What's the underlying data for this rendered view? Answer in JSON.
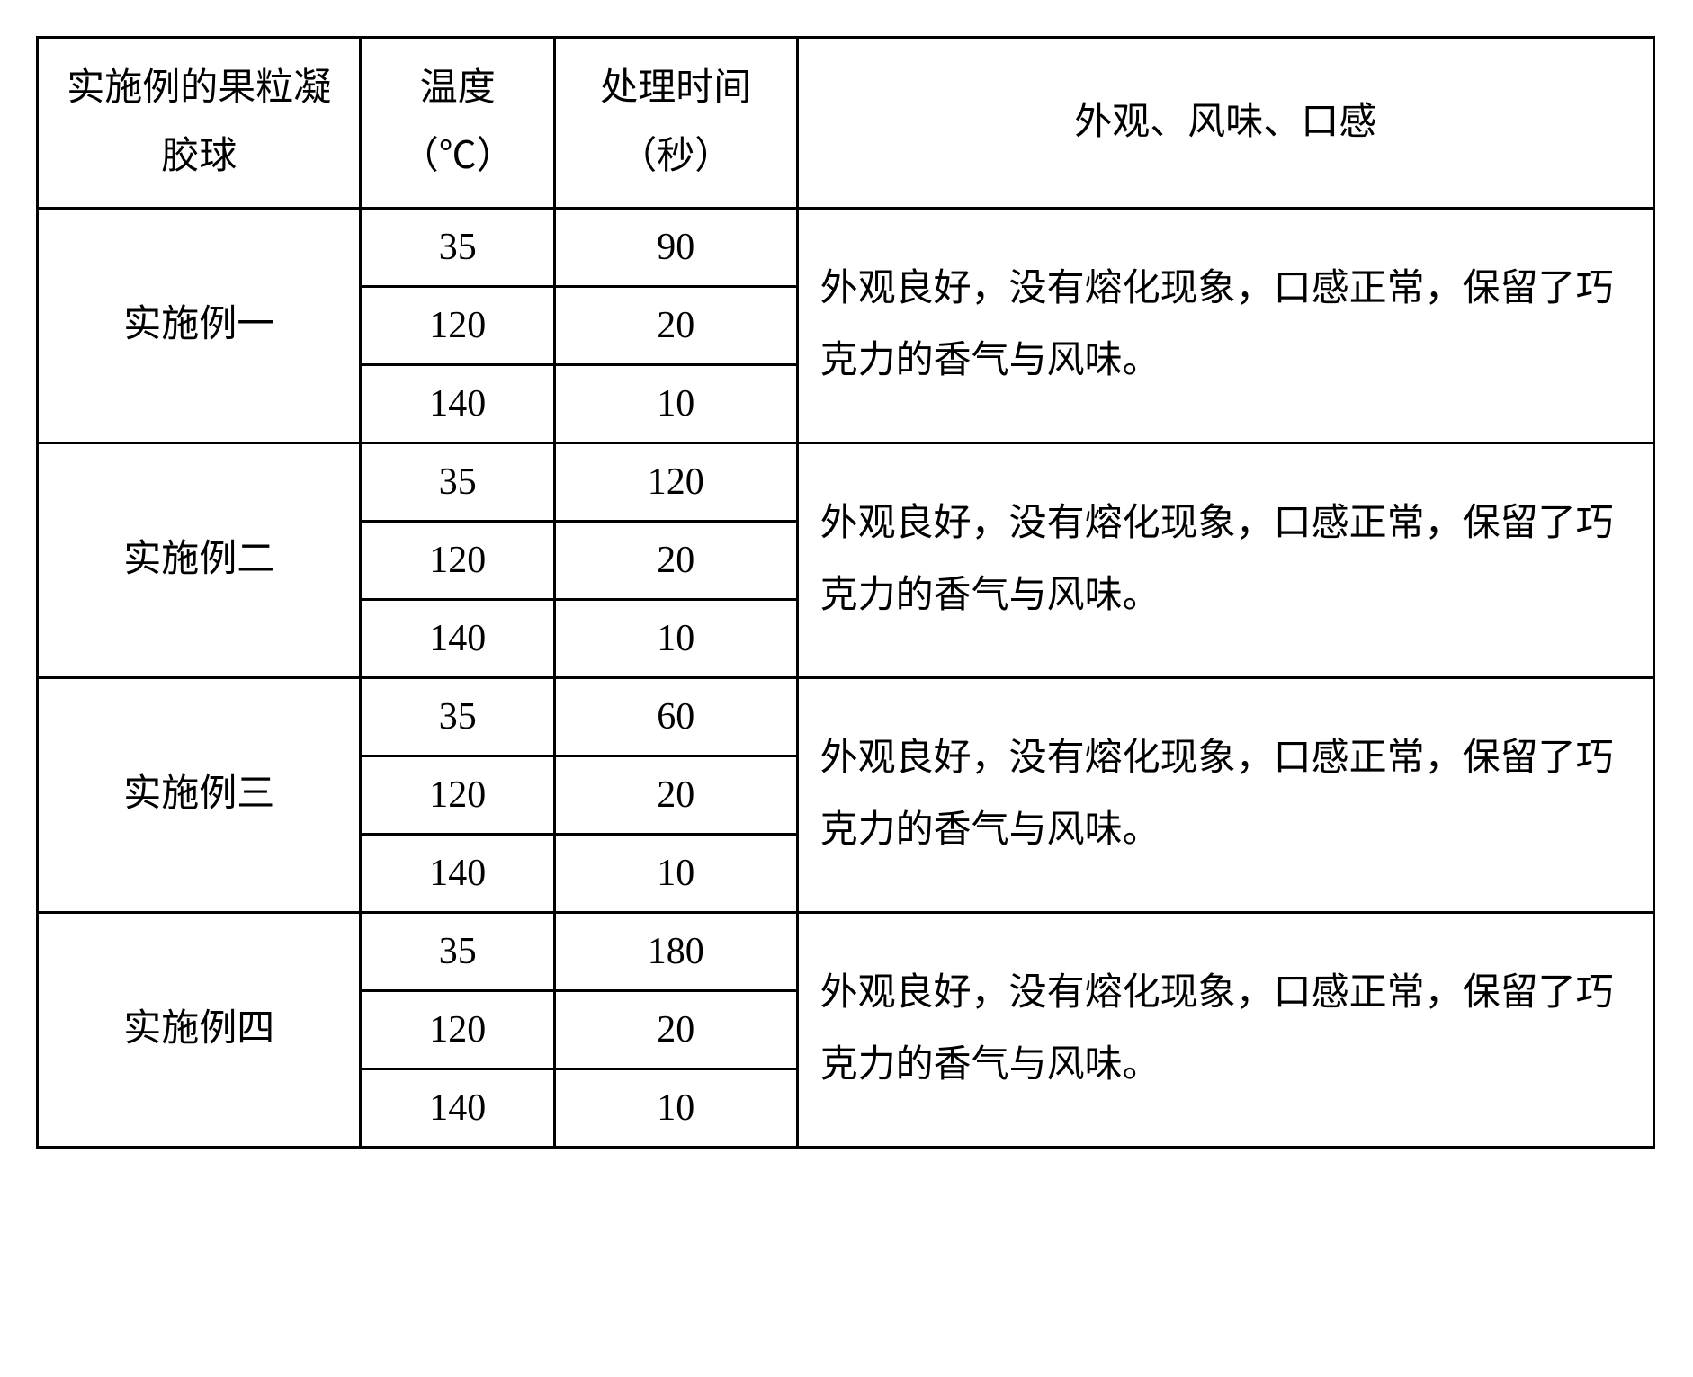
{
  "table": {
    "type": "table",
    "border_color": "#000000",
    "border_width": 3,
    "background_color": "#ffffff",
    "text_color": "#000000",
    "font_family": "SimSun",
    "fontsize": 42,
    "columns": [
      {
        "key": "example",
        "header": "实施例的果粒凝胶球",
        "width_pct": 20,
        "align": "center"
      },
      {
        "key": "temp",
        "header": "温度（℃）",
        "width_pct": 12,
        "align": "center"
      },
      {
        "key": "time",
        "header": "处理时间（秒）",
        "width_pct": 15,
        "align": "center"
      },
      {
        "key": "desc",
        "header": "外观、风味、口感",
        "width_pct": 53,
        "align": "left"
      }
    ],
    "groups": [
      {
        "example": "实施例一",
        "desc": "外观良好，没有熔化现象，口感正常，保留了巧克力的香气与风味。",
        "rows": [
          {
            "temp": "35",
            "time": "90"
          },
          {
            "temp": "120",
            "time": "20"
          },
          {
            "temp": "140",
            "time": "10"
          }
        ]
      },
      {
        "example": "实施例二",
        "desc": "外观良好，没有熔化现象，口感正常，保留了巧克力的香气与风味。",
        "rows": [
          {
            "temp": "35",
            "time": "120"
          },
          {
            "temp": "120",
            "time": "20"
          },
          {
            "temp": "140",
            "time": "10"
          }
        ]
      },
      {
        "example": "实施例三",
        "desc": "外观良好，没有熔化现象，口感正常，保留了巧克力的香气与风味。",
        "rows": [
          {
            "temp": "35",
            "time": "60"
          },
          {
            "temp": "120",
            "time": "20"
          },
          {
            "temp": "140",
            "time": "10"
          }
        ]
      },
      {
        "example": "实施例四",
        "desc": "外观良好，没有熔化现象，口感正常，保留了巧克力的香气与风味。",
        "rows": [
          {
            "temp": "35",
            "time": "180"
          },
          {
            "temp": "120",
            "time": "20"
          },
          {
            "temp": "140",
            "time": "10"
          }
        ]
      }
    ]
  }
}
